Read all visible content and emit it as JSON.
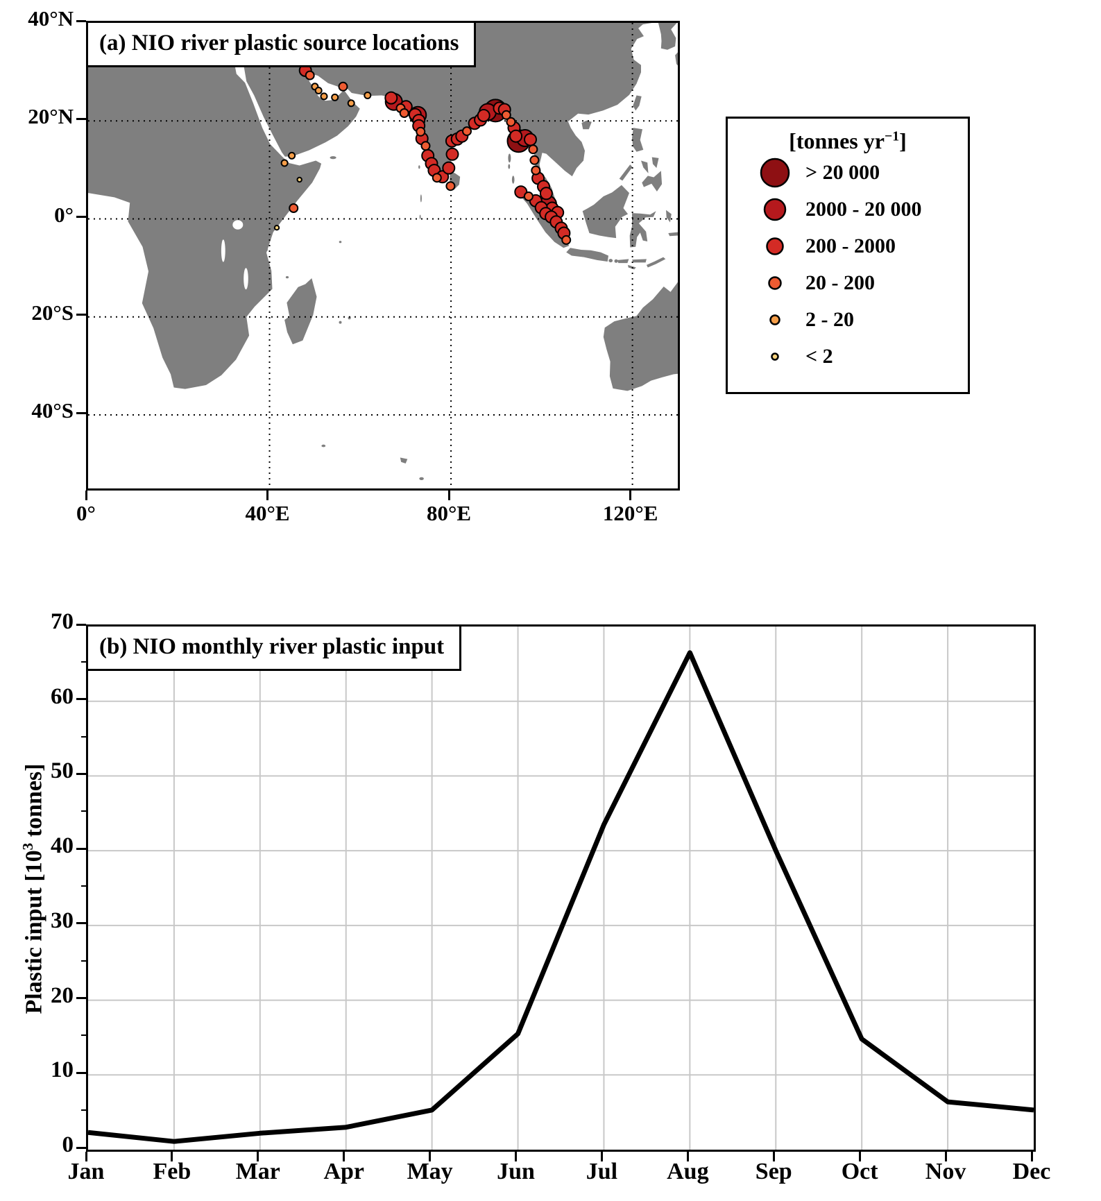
{
  "panel_a": {
    "title": "(a) NIO river plastic source locations",
    "legend": {
      "title_prefix": "[tonnes yr",
      "title_sup": "−1",
      "title_suffix": "]"
    }
  },
  "panel_b": {
    "title": "(b) NIO monthly river plastic input",
    "ylabel_prefix": "Plastic input [10",
    "ylabel_sup": "3",
    "ylabel_suffix": " tonnes]"
  },
  "chart_data": [
    {
      "type": "scatter",
      "title": "(a) NIO river plastic source locations",
      "map": {
        "lon_range": [
          0,
          130
        ],
        "lat_range": [
          -55,
          40
        ],
        "land_color": "#7f7f7f",
        "ocean_color": "#ffffff",
        "grid": "dotted"
      },
      "lon_ticks": [
        {
          "value": 0,
          "label": "0°"
        },
        {
          "value": 40,
          "label": "40°E"
        },
        {
          "value": 80,
          "label": "80°E"
        },
        {
          "value": 120,
          "label": "120°E"
        }
      ],
      "lat_ticks": [
        {
          "value": 40,
          "label": "40°N"
        },
        {
          "value": 20,
          "label": "20°N"
        },
        {
          "value": 0,
          "label": "0°"
        },
        {
          "value": -20,
          "label": "20°S"
        },
        {
          "value": -40,
          "label": "40°S"
        }
      ],
      "size_legend_title": "[tonnes yr⁻¹]",
      "size_classes": [
        {
          "label": "> 20 000",
          "color": "#8e1013",
          "map_radius_px": 16,
          "legend_radius_px": 20
        },
        {
          "label": "2000 - 20 000",
          "color": "#b5191d",
          "map_radius_px": 12,
          "legend_radius_px": 15
        },
        {
          "label": "200 - 2000",
          "color": "#d32b25",
          "map_radius_px": 8.5,
          "legend_radius_px": 11.5
        },
        {
          "label": "20 - 200",
          "color": "#ee5b32",
          "map_radius_px": 6,
          "legend_radius_px": 8.5
        },
        {
          "label": "2 - 20",
          "color": "#f59e49",
          "map_radius_px": 4.5,
          "legend_radius_px": 6.5
        },
        {
          "label": "< 2",
          "color": "#f8d27d",
          "map_radius_px": 3.2,
          "legend_radius_px": 4.5
        }
      ],
      "points_format": [
        "lon",
        "lat",
        "size_class_index"
      ],
      "points": [
        [
          47.9,
          30.3,
          2
        ],
        [
          48.9,
          29.3,
          3
        ],
        [
          50,
          27,
          4
        ],
        [
          50.8,
          26.2,
          4
        ],
        [
          52,
          25,
          4
        ],
        [
          54.4,
          24.8,
          4
        ],
        [
          56.2,
          27,
          3
        ],
        [
          58,
          23.6,
          4
        ],
        [
          44.9,
          12.9,
          4
        ],
        [
          43.3,
          11.4,
          4
        ],
        [
          46.6,
          8,
          5
        ],
        [
          45.3,
          2.2,
          3
        ],
        [
          41.6,
          -1.8,
          5
        ],
        [
          61.6,
          25.2,
          4
        ],
        [
          66.8,
          24.7,
          2
        ],
        [
          67.4,
          23.9,
          1
        ],
        [
          68.9,
          22.6,
          3
        ],
        [
          70.1,
          22.9,
          2
        ],
        [
          69.7,
          21.6,
          3
        ],
        [
          72.1,
          21.3,
          2
        ],
        [
          72.7,
          21.2,
          1
        ],
        [
          72.9,
          20.1,
          2
        ],
        [
          72.9,
          19,
          2
        ],
        [
          73.3,
          17.8,
          3
        ],
        [
          73.6,
          16.4,
          2
        ],
        [
          74.4,
          14.9,
          3
        ],
        [
          74.9,
          12.9,
          2
        ],
        [
          75.7,
          11.3,
          2
        ],
        [
          76.3,
          9.9,
          2
        ],
        [
          76.9,
          8.4,
          3
        ],
        [
          78.1,
          8.6,
          2
        ],
        [
          79.5,
          10.4,
          2
        ],
        [
          80.3,
          13.2,
          2
        ],
        [
          80.2,
          15.9,
          2
        ],
        [
          81.4,
          16.3,
          2
        ],
        [
          82.4,
          16.9,
          2
        ],
        [
          83.5,
          17.9,
          3
        ],
        [
          85.2,
          19.5,
          2
        ],
        [
          86.5,
          20.2,
          2
        ],
        [
          87.2,
          21.1,
          2
        ],
        [
          88.1,
          21.8,
          1
        ],
        [
          89.8,
          22.1,
          0
        ],
        [
          90.7,
          22.6,
          2
        ],
        [
          91.8,
          22.3,
          2
        ],
        [
          92.2,
          21.2,
          3
        ],
        [
          93.2,
          19.8,
          3
        ],
        [
          93.9,
          18.6,
          2
        ],
        [
          94.3,
          16.9,
          2
        ],
        [
          94.9,
          15.9,
          0
        ],
        [
          96.3,
          16.5,
          1
        ],
        [
          97.5,
          16.2,
          2
        ],
        [
          98.1,
          14.2,
          3
        ],
        [
          98.4,
          12,
          3
        ],
        [
          98.7,
          9.9,
          3
        ],
        [
          99.2,
          8.3,
          2
        ],
        [
          100.4,
          6.6,
          2
        ],
        [
          101,
          5.2,
          2
        ],
        [
          101.4,
          3,
          1
        ],
        [
          102.3,
          2.2,
          2
        ],
        [
          103.5,
          1.3,
          2
        ],
        [
          95.4,
          5.5,
          2
        ],
        [
          97.1,
          4.6,
          3
        ],
        [
          98.7,
          3.7,
          2
        ],
        [
          99.9,
          2.3,
          2
        ],
        [
          100.9,
          1.1,
          2
        ],
        [
          102.1,
          0.4,
          2
        ],
        [
          103.2,
          -0.6,
          2
        ],
        [
          104.3,
          -1.9,
          2
        ],
        [
          104.9,
          -2.9,
          2
        ],
        [
          105.4,
          -4.3,
          3
        ],
        [
          79.9,
          6.7,
          3
        ]
      ]
    },
    {
      "type": "line",
      "title": "(b) NIO monthly river plastic input",
      "categories": [
        "Jan",
        "Feb",
        "Mar",
        "Apr",
        "May",
        "Jun",
        "Jul",
        "Aug",
        "Sep",
        "Oct",
        "Nov",
        "Dec"
      ],
      "values": [
        2.3,
        1.1,
        2.2,
        3.0,
        5.3,
        15.5,
        43.5,
        66.5,
        40.0,
        14.8,
        6.4,
        5.3
      ],
      "ylabel": "Plastic input [10³ tonnes]",
      "ylim": [
        0,
        70
      ],
      "ytick_step": 10,
      "y_tick_labels": [
        "0",
        "10",
        "20",
        "30",
        "40",
        "50",
        "60",
        "70"
      ],
      "grid": true,
      "line_color": "#000000",
      "line_width": 7
    }
  ]
}
